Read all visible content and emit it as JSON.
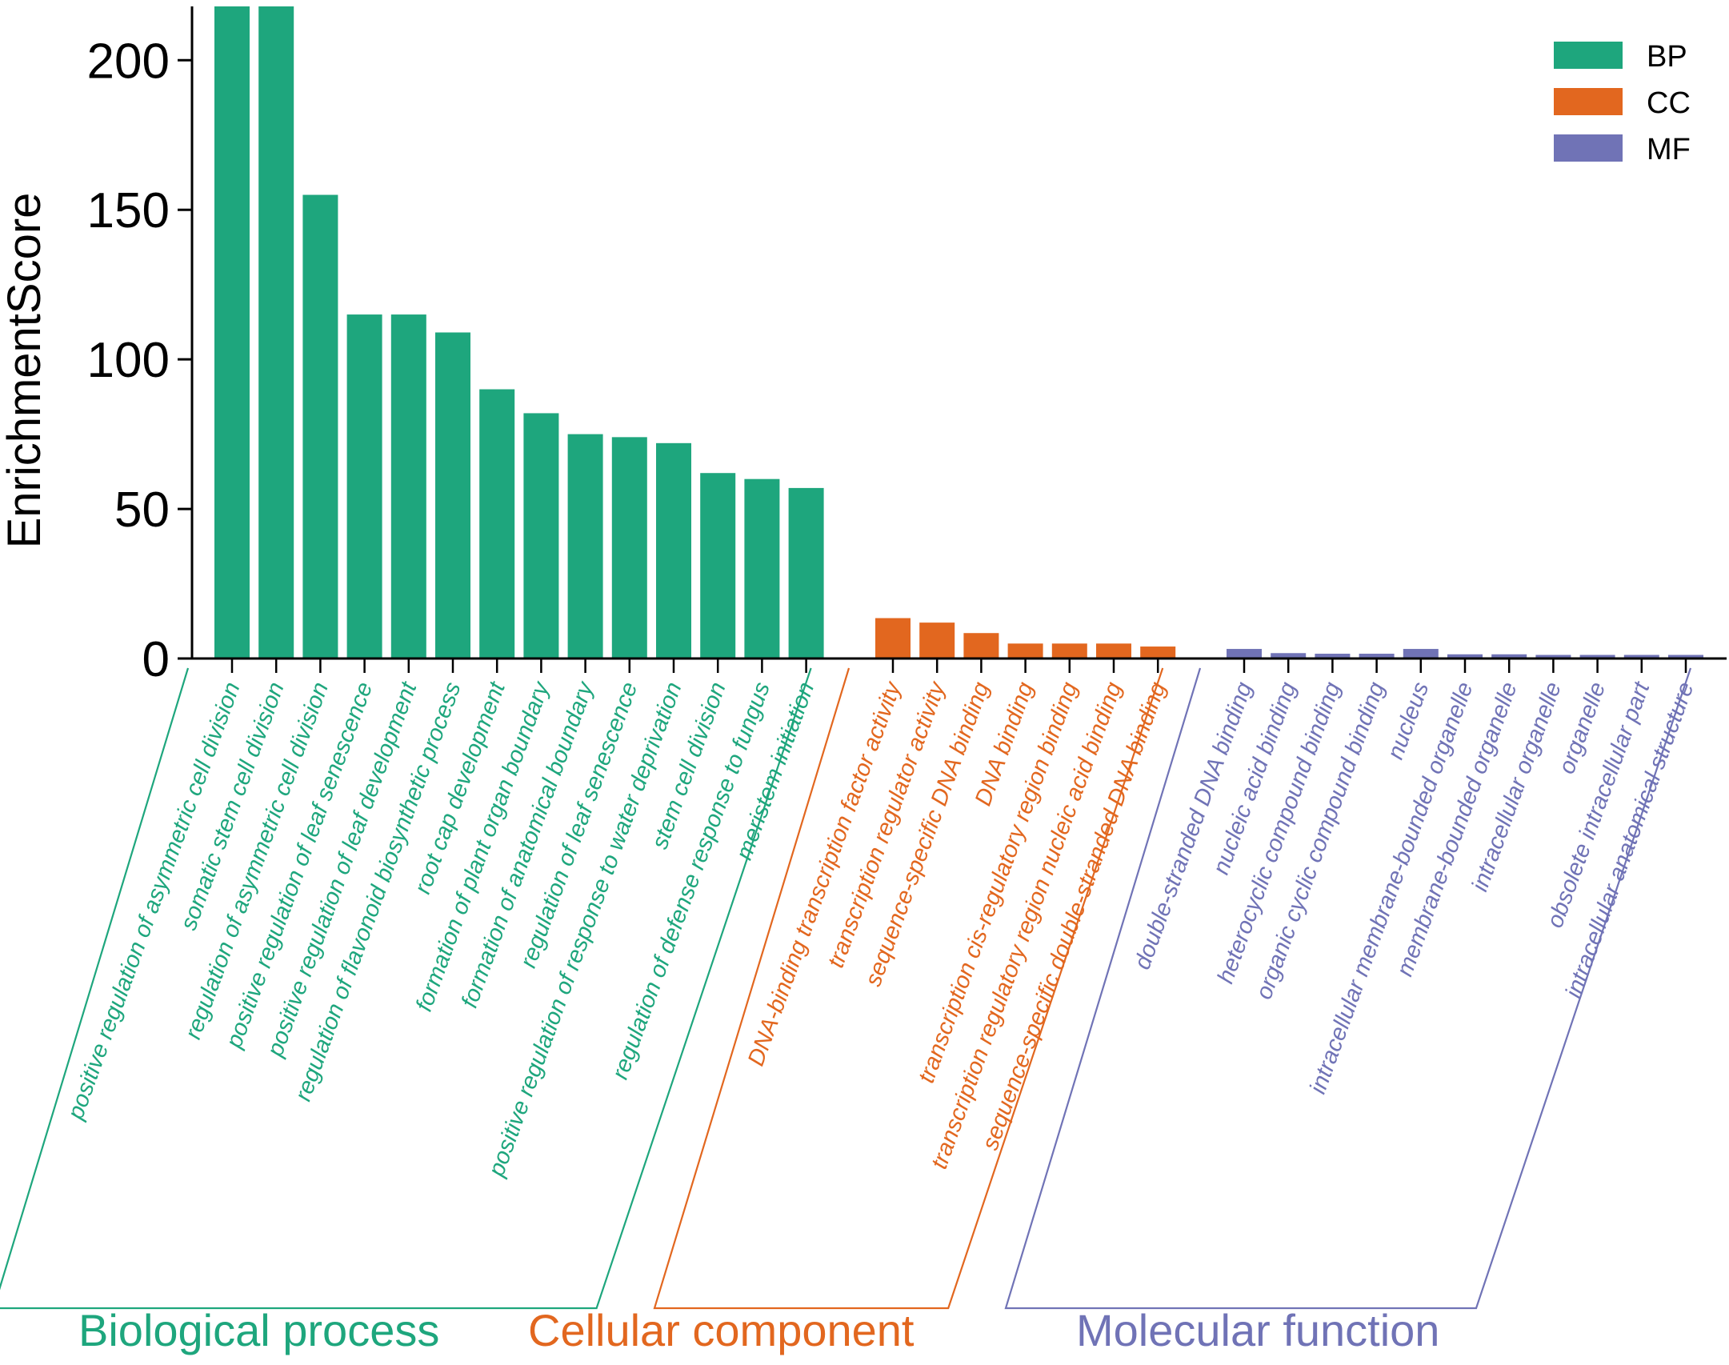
{
  "chart_data": {
    "type": "bar",
    "ylabel": "EnrichmentScore",
    "ylim": [
      0,
      218
    ],
    "yticks": [
      0,
      50,
      100,
      150,
      200
    ],
    "legend_position": "top-right",
    "legend": [
      {
        "label": "BP",
        "color": "#1ea67d"
      },
      {
        "label": "CC",
        "color": "#e2671f"
      },
      {
        "label": "MF",
        "color": "#7073b6"
      }
    ],
    "series": [
      {
        "name": "BP",
        "group_label": "Biological process",
        "color": "#1ea67d",
        "categories": [
          "positive regulation of asymmetric cell division",
          "somatic stem cell division",
          "regulation of asymmetric cell division",
          "positive regulation of leaf senescence",
          "positive regulation of leaf development",
          "regulation of flavonoid biosynthetic process",
          "root cap development",
          "formation of plant organ boundary",
          "formation of anatomical boundary",
          "regulation of leaf senescence",
          "positive regulation of response to water deprivation",
          "stem cell division",
          "regulation of defense response to fungus",
          "meristem initiation"
        ],
        "values": [
          218,
          218,
          155,
          115,
          115,
          109,
          90,
          82,
          75,
          74,
          72,
          62,
          60,
          57
        ]
      },
      {
        "name": "CC",
        "group_label": "Cellular component",
        "color": "#e2671f",
        "categories": [
          "DNA-binding transcription factor activity",
          "transcription regulator activity",
          "sequence-specific DNA binding",
          "DNA binding",
          "transcription cis-regulatory region binding",
          "transcription regulatory region nucleic acid binding",
          "sequence-specific double-stranded DNA binding"
        ],
        "values": [
          13.5,
          12,
          8.5,
          5,
          5,
          5,
          4
        ]
      },
      {
        "name": "MF",
        "group_label": "Molecular function",
        "color": "#7073b6",
        "categories": [
          "double-stranded DNA binding",
          "nucleic acid binding",
          "heterocyclic compound binding",
          "organic cyclic compound binding",
          "nucleus",
          "intracellular membrane-bounded organelle",
          "membrane-bounded organelle",
          "intracellular organelle",
          "organelle",
          "obsolete intracellular part",
          "intracellular anatomical structure"
        ],
        "values": [
          3.2,
          1.8,
          1.6,
          1.6,
          3.2,
          1.4,
          1.4,
          1.2,
          1.2,
          1.2,
          1.2
        ]
      }
    ]
  }
}
